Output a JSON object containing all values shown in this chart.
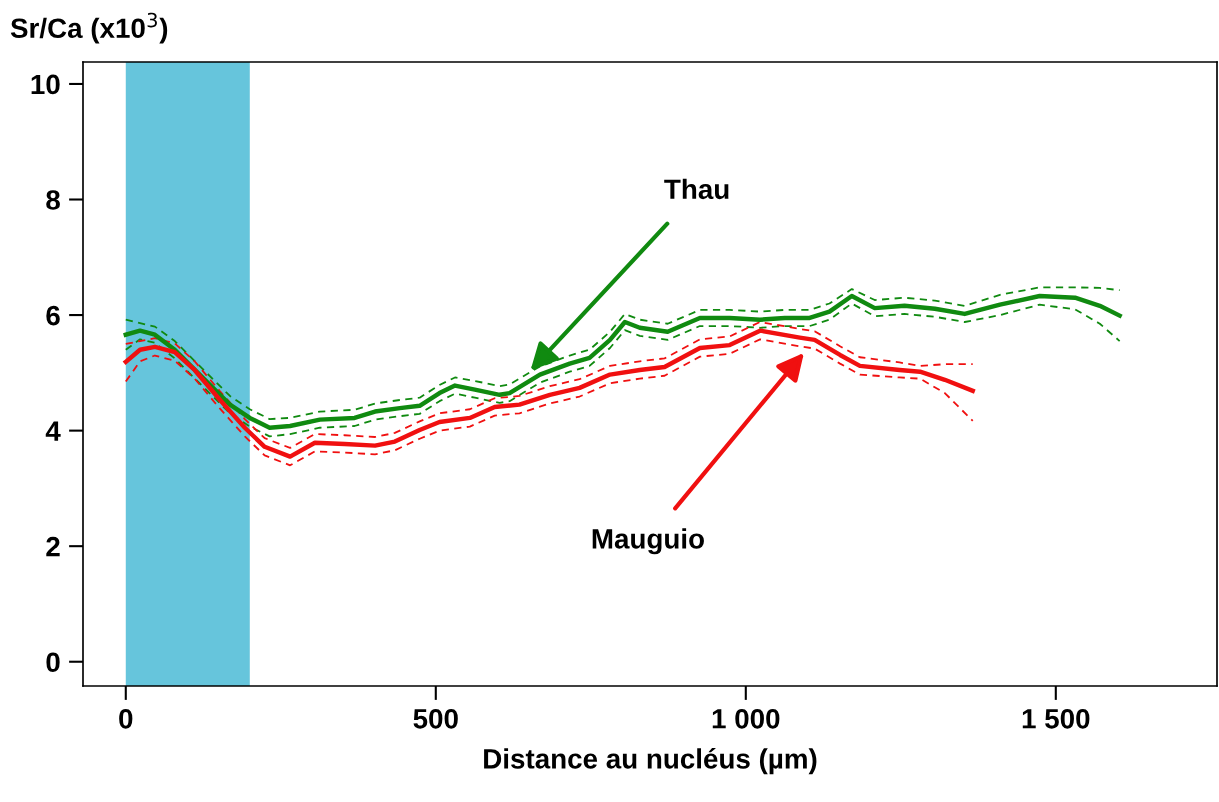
{
  "chart_data": {
    "type": "line",
    "ylabel": "Sr/Ca (x10$^{3}$)",
    "xlabel": "Distance au nucléus (µm)",
    "xlim": [
      -69,
      1760
    ],
    "ylim": [
      -0.42,
      10.38
    ],
    "xticks": [
      0,
      500,
      {
        "value": 1000,
        "label": "1 000"
      },
      {
        "value": 1500,
        "label": "1 500"
      }
    ],
    "yticks": [
      0,
      2,
      4,
      6,
      8,
      10
    ],
    "grid": false,
    "legend": false,
    "marker": "none",
    "line_style": "solid",
    "bands": [
      {
        "axis": "x",
        "from": 0,
        "to": 200,
        "color": "#66c5dc"
      }
    ],
    "series": [
      {
        "name": "Thau",
        "color": "#108a10",
        "x": [
          0,
          23,
          47,
          79,
          119,
          168,
          200,
          232,
          265,
          313,
          369,
          402,
          442,
          474,
          506,
          531,
          563,
          603,
          619,
          668,
          716,
          748,
          781,
          805,
          829,
          874,
          926,
          974,
          1023,
          1063,
          1103,
          1135,
          1171,
          1208,
          1256,
          1305,
          1353,
          1410,
          1474,
          1531,
          1571,
          1603
        ],
        "values": [
          5.66,
          5.73,
          5.66,
          5.4,
          4.97,
          4.45,
          4.22,
          4.05,
          4.08,
          4.19,
          4.22,
          4.33,
          4.39,
          4.43,
          4.65,
          4.78,
          4.71,
          4.62,
          4.65,
          4.97,
          5.16,
          5.26,
          5.57,
          5.88,
          5.78,
          5.71,
          5.95,
          5.95,
          5.92,
          5.95,
          5.95,
          6.06,
          6.33,
          6.12,
          6.16,
          6.11,
          6.02,
          6.18,
          6.33,
          6.3,
          6.16,
          5.99
        ]
      },
      {
        "color": "#108a10",
        "line_style": "dashed",
        "x": [
          0,
          23,
          47,
          79,
          119,
          168,
          200,
          232,
          265,
          313,
          369,
          402,
          442,
          474,
          506,
          531,
          563,
          603,
          619,
          668,
          716,
          748,
          781,
          805,
          829,
          874,
          926,
          974,
          1023,
          1063,
          1103,
          1135,
          1171,
          1208,
          1256,
          1305,
          1353,
          1410,
          1474,
          1531,
          1571,
          1603
        ],
        "values": [
          5.92,
          5.86,
          5.8,
          5.55,
          5.12,
          4.6,
          4.37,
          4.2,
          4.22,
          4.33,
          4.36,
          4.47,
          4.53,
          4.57,
          4.79,
          4.92,
          4.86,
          4.77,
          4.8,
          5.11,
          5.3,
          5.4,
          5.71,
          6.02,
          5.92,
          5.85,
          6.09,
          6.09,
          6.06,
          6.09,
          6.09,
          6.2,
          6.45,
          6.26,
          6.3,
          6.25,
          6.16,
          6.35,
          6.48,
          6.48,
          6.47,
          6.43
        ]
      },
      {
        "color": "#108a10",
        "line_style": "dashed",
        "x": [
          0,
          23,
          47,
          79,
          119,
          168,
          200,
          232,
          265,
          313,
          369,
          402,
          442,
          474,
          506,
          531,
          563,
          603,
          619,
          668,
          716,
          748,
          781,
          805,
          829,
          874,
          926,
          974,
          1023,
          1063,
          1103,
          1135,
          1171,
          1208,
          1256,
          1305,
          1353,
          1410,
          1474,
          1531,
          1571,
          1603
        ],
        "values": [
          5.4,
          5.58,
          5.52,
          5.25,
          4.82,
          4.3,
          4.07,
          3.9,
          3.94,
          4.05,
          4.08,
          4.19,
          4.25,
          4.29,
          4.51,
          4.64,
          4.57,
          4.48,
          4.51,
          4.83,
          5.02,
          5.12,
          5.43,
          5.74,
          5.64,
          5.57,
          5.81,
          5.81,
          5.78,
          5.81,
          5.81,
          5.92,
          6.2,
          5.98,
          6.02,
          5.97,
          5.88,
          6.0,
          6.18,
          6.1,
          5.85,
          5.55
        ]
      },
      {
        "name": "Mauguio",
        "color": "#f01010",
        "x": [
          0,
          23,
          47,
          79,
          111,
          152,
          192,
          224,
          265,
          305,
          353,
          402,
          434,
          474,
          506,
          555,
          595,
          635,
          684,
          732,
          781,
          829,
          869,
          926,
          974,
          1023,
          1087,
          1111,
          1152,
          1184,
          1248,
          1281,
          1321,
          1366
        ],
        "values": [
          5.19,
          5.4,
          5.45,
          5.36,
          5.05,
          4.53,
          4.05,
          3.72,
          3.55,
          3.79,
          3.77,
          3.74,
          3.81,
          4.01,
          4.15,
          4.22,
          4.41,
          4.45,
          4.62,
          4.74,
          4.97,
          5.05,
          5.1,
          5.43,
          5.48,
          5.73,
          5.61,
          5.57,
          5.31,
          5.12,
          5.05,
          5.02,
          4.88,
          4.69
        ]
      },
      {
        "color": "#f01010",
        "line_style": "dashed",
        "x": [
          0,
          23,
          47,
          79,
          111,
          152,
          192,
          224,
          265,
          305,
          353,
          402,
          434,
          474,
          506,
          555,
          595,
          635,
          684,
          732,
          781,
          829,
          869,
          926,
          974,
          1023,
          1087,
          1111,
          1152,
          1184,
          1248,
          1281,
          1321,
          1366
        ],
        "values": [
          5.5,
          5.55,
          5.6,
          5.51,
          5.2,
          4.68,
          4.2,
          3.87,
          3.7,
          3.94,
          3.92,
          3.89,
          3.96,
          4.16,
          4.3,
          4.37,
          4.56,
          4.6,
          4.77,
          4.89,
          5.12,
          5.2,
          5.25,
          5.58,
          5.63,
          5.88,
          5.76,
          5.72,
          5.46,
          5.27,
          5.18,
          5.12,
          5.15,
          5.15
        ]
      },
      {
        "color": "#f01010",
        "line_style": "dashed",
        "x": [
          0,
          23,
          47,
          79,
          111,
          152,
          192,
          224,
          265,
          305,
          353,
          402,
          434,
          474,
          506,
          555,
          595,
          635,
          684,
          732,
          781,
          829,
          869,
          926,
          974,
          1023,
          1087,
          1111,
          1152,
          1184,
          1248,
          1281,
          1321,
          1366
        ],
        "values": [
          4.85,
          5.2,
          5.3,
          5.21,
          4.9,
          4.38,
          3.9,
          3.57,
          3.4,
          3.64,
          3.62,
          3.59,
          3.66,
          3.86,
          4.0,
          4.07,
          4.26,
          4.3,
          4.47,
          4.59,
          4.82,
          4.9,
          4.95,
          5.28,
          5.33,
          5.58,
          5.46,
          5.42,
          5.16,
          4.97,
          4.92,
          4.9,
          4.65,
          4.17
        ]
      }
    ]
  }
}
